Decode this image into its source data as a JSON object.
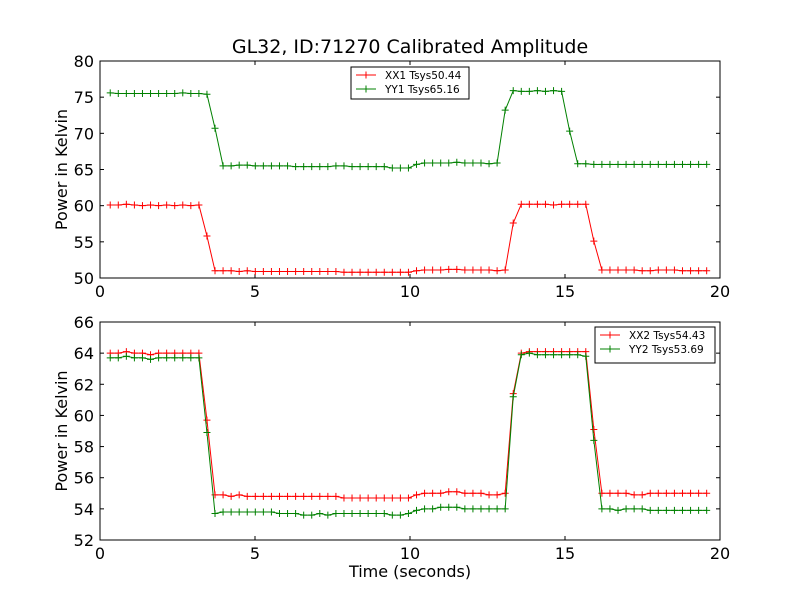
{
  "figure": {
    "title": "GL32, ID:71270 Calibrated Amplitude"
  },
  "chart_data": [
    {
      "type": "line",
      "title": "GL32, ID:71270 Calibrated Amplitude",
      "xlabel": "",
      "ylabel": "Power in Kelvin",
      "xlim": [
        0,
        20
      ],
      "ylim": [
        50,
        80
      ],
      "xticks": [
        0,
        5,
        10,
        15,
        20
      ],
      "yticks": [
        50,
        55,
        60,
        65,
        70,
        75,
        80
      ],
      "xtick_labels": [
        "0",
        "5",
        "10",
        "15",
        "20"
      ],
      "ytick_labels": [
        "50",
        "55",
        "60",
        "65",
        "70",
        "75",
        "80"
      ],
      "grid": false,
      "legend_position": "top-center",
      "x": [
        0.33,
        0.59,
        0.85,
        1.11,
        1.37,
        1.63,
        1.89,
        2.15,
        2.41,
        2.67,
        2.93,
        3.19,
        3.45,
        3.71,
        3.97,
        4.23,
        4.49,
        4.75,
        5.01,
        5.27,
        5.53,
        5.79,
        6.05,
        6.31,
        6.57,
        6.83,
        7.09,
        7.35,
        7.61,
        7.87,
        8.13,
        8.39,
        8.65,
        8.91,
        9.17,
        9.43,
        9.69,
        9.95,
        10.21,
        10.47,
        10.73,
        10.99,
        11.25,
        11.51,
        11.77,
        12.03,
        12.29,
        12.55,
        12.81,
        13.07,
        13.33,
        13.59,
        13.85,
        14.11,
        14.37,
        14.63,
        14.89,
        15.15,
        15.41,
        15.67,
        15.93,
        16.19,
        16.45,
        16.71,
        16.97,
        17.23,
        17.49,
        17.75,
        18.01,
        18.27,
        18.53,
        18.79,
        19.05,
        19.31,
        19.57
      ],
      "series": [
        {
          "name": "XX1 Tsys50.44",
          "color": "#ff0000",
          "values": [
            60.1,
            60.1,
            60.2,
            60.1,
            60.0,
            60.1,
            60.0,
            60.1,
            60.0,
            60.1,
            60.0,
            60.1,
            55.8,
            51.0,
            51.0,
            51.0,
            50.9,
            51.0,
            50.9,
            50.9,
            50.9,
            50.9,
            50.9,
            50.9,
            50.9,
            50.9,
            50.9,
            50.9,
            50.9,
            50.8,
            50.8,
            50.8,
            50.8,
            50.8,
            50.8,
            50.8,
            50.8,
            50.8,
            51.0,
            51.1,
            51.1,
            51.1,
            51.2,
            51.2,
            51.1,
            51.1,
            51.1,
            51.1,
            51.0,
            51.1,
            57.6,
            60.2,
            60.2,
            60.2,
            60.2,
            60.1,
            60.2,
            60.2,
            60.2,
            60.2,
            55.1,
            51.1,
            51.1,
            51.1,
            51.1,
            51.1,
            51.0,
            51.0,
            51.1,
            51.1,
            51.1,
            51.0,
            51.0,
            51.0,
            51.0
          ]
        },
        {
          "name": "YY1 Tsys65.16",
          "color": "#008000",
          "values": [
            75.6,
            75.5,
            75.5,
            75.5,
            75.5,
            75.5,
            75.5,
            75.5,
            75.5,
            75.6,
            75.5,
            75.5,
            75.4,
            70.7,
            65.5,
            65.5,
            65.6,
            65.6,
            65.5,
            65.5,
            65.5,
            65.5,
            65.5,
            65.4,
            65.4,
            65.4,
            65.4,
            65.4,
            65.5,
            65.5,
            65.4,
            65.4,
            65.4,
            65.4,
            65.4,
            65.2,
            65.2,
            65.2,
            65.7,
            65.9,
            65.9,
            65.9,
            65.9,
            66.0,
            65.9,
            65.9,
            65.9,
            65.8,
            65.9,
            73.2,
            75.9,
            75.8,
            75.8,
            75.9,
            75.8,
            75.9,
            75.8,
            70.3,
            65.8,
            65.8,
            65.7,
            65.7,
            65.7,
            65.7,
            65.7,
            65.7,
            65.7,
            65.7,
            65.7,
            65.7,
            65.7,
            65.7,
            65.7,
            65.7,
            65.7
          ]
        }
      ]
    },
    {
      "type": "line",
      "title": "",
      "xlabel": "Time (seconds)",
      "ylabel": "Power in Kelvin",
      "xlim": [
        0,
        20
      ],
      "ylim": [
        52,
        66
      ],
      "xticks": [
        0,
        5,
        10,
        15,
        20
      ],
      "yticks": [
        52,
        54,
        56,
        58,
        60,
        62,
        64,
        66
      ],
      "xtick_labels": [
        "0",
        "5",
        "10",
        "15",
        "20"
      ],
      "ytick_labels": [
        "52",
        "54",
        "56",
        "58",
        "60",
        "62",
        "64",
        "66"
      ],
      "grid": false,
      "legend_position": "top-right",
      "x": [
        0.33,
        0.59,
        0.85,
        1.11,
        1.37,
        1.63,
        1.89,
        2.15,
        2.41,
        2.67,
        2.93,
        3.19,
        3.45,
        3.71,
        3.97,
        4.23,
        4.49,
        4.75,
        5.01,
        5.27,
        5.53,
        5.79,
        6.05,
        6.31,
        6.57,
        6.83,
        7.09,
        7.35,
        7.61,
        7.87,
        8.13,
        8.39,
        8.65,
        8.91,
        9.17,
        9.43,
        9.69,
        9.95,
        10.21,
        10.47,
        10.73,
        10.99,
        11.25,
        11.51,
        11.77,
        12.03,
        12.29,
        12.55,
        12.81,
        13.07,
        13.33,
        13.59,
        13.85,
        14.11,
        14.37,
        14.63,
        14.89,
        15.15,
        15.41,
        15.67,
        15.93,
        16.19,
        16.45,
        16.71,
        16.97,
        17.23,
        17.49,
        17.75,
        18.01,
        18.27,
        18.53,
        18.79,
        19.05,
        19.31,
        19.57
      ],
      "series": [
        {
          "name": "XX2 Tsys54.43",
          "color": "#ff0000",
          "values": [
            64.0,
            64.0,
            64.1,
            64.0,
            64.0,
            63.9,
            64.0,
            64.0,
            64.0,
            64.0,
            64.0,
            64.0,
            59.7,
            54.9,
            54.9,
            54.8,
            54.9,
            54.8,
            54.8,
            54.8,
            54.8,
            54.8,
            54.8,
            54.8,
            54.8,
            54.8,
            54.8,
            54.8,
            54.8,
            54.7,
            54.7,
            54.7,
            54.7,
            54.7,
            54.7,
            54.7,
            54.7,
            54.7,
            54.9,
            55.0,
            55.0,
            55.0,
            55.1,
            55.1,
            55.0,
            55.0,
            55.0,
            54.9,
            54.9,
            55.0,
            61.4,
            64.0,
            64.1,
            64.1,
            64.1,
            64.1,
            64.1,
            64.1,
            64.1,
            64.1,
            59.1,
            55.0,
            55.0,
            55.0,
            55.0,
            54.9,
            54.9,
            55.0,
            55.0,
            55.0,
            55.0,
            55.0,
            55.0,
            55.0,
            55.0
          ]
        },
        {
          "name": "YY2 Tsys53.69",
          "color": "#008000",
          "values": [
            63.7,
            63.7,
            63.8,
            63.7,
            63.7,
            63.6,
            63.7,
            63.7,
            63.7,
            63.7,
            63.7,
            63.7,
            58.9,
            53.7,
            53.8,
            53.8,
            53.8,
            53.8,
            53.8,
            53.8,
            53.8,
            53.7,
            53.7,
            53.7,
            53.6,
            53.6,
            53.7,
            53.6,
            53.7,
            53.7,
            53.7,
            53.7,
            53.7,
            53.7,
            53.7,
            53.6,
            53.6,
            53.7,
            53.9,
            54.0,
            54.0,
            54.1,
            54.1,
            54.1,
            54.0,
            54.0,
            54.0,
            54.0,
            54.0,
            54.0,
            61.2,
            63.9,
            64.0,
            63.9,
            63.9,
            63.9,
            63.9,
            63.9,
            63.9,
            63.8,
            58.4,
            54.0,
            54.0,
            53.9,
            54.0,
            54.0,
            54.0,
            53.9,
            53.9,
            53.9,
            53.9,
            53.9,
            53.9,
            53.9,
            53.9
          ]
        }
      ]
    }
  ]
}
